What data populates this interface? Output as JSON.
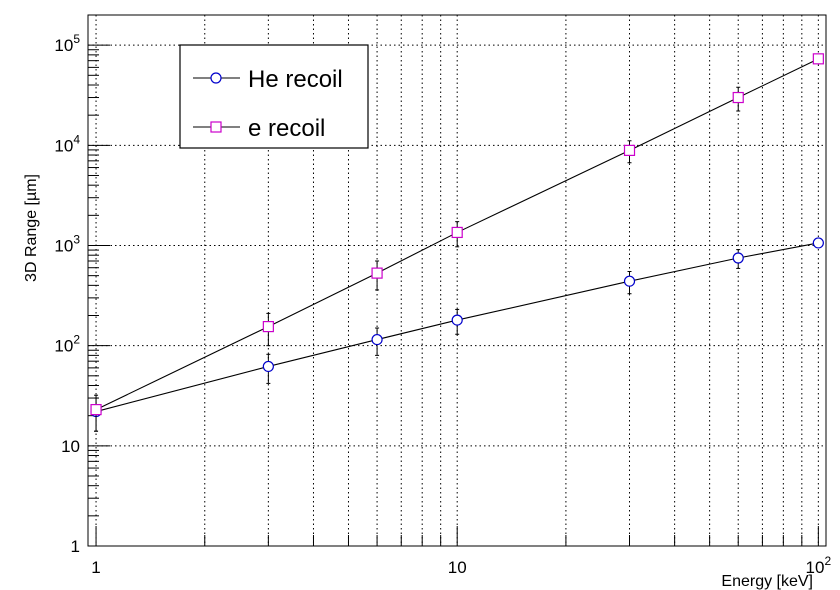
{
  "chart_data": {
    "type": "line",
    "x_scale": "log",
    "y_scale": "log",
    "xlim": [
      0.95,
      105
    ],
    "ylim": [
      1,
      200000
    ],
    "grid": true,
    "xlabel": "Energy [keV]",
    "ylabel": "3D Range [µm]",
    "x_ticks": [
      1,
      10,
      100
    ],
    "x_tick_labels": [
      "1",
      "10",
      "10^2"
    ],
    "y_ticks": [
      1,
      10,
      100,
      1000,
      10000,
      100000
    ],
    "y_tick_labels": [
      "1",
      "10",
      "10^2",
      "10^3",
      "10^4",
      "10^5"
    ],
    "legend_position": "top-left",
    "series": [
      {
        "name": "He recoil",
        "color": "#0000cc",
        "marker": "circle",
        "x": [
          1,
          3,
          6,
          10,
          30,
          60,
          100
        ],
        "y": [
          22,
          62,
          115,
          180,
          440,
          750,
          1060
        ],
        "err": [
          8,
          20,
          35,
          50,
          110,
          160,
          0
        ]
      },
      {
        "name": "e recoil",
        "color": "#cc00cc",
        "marker": "square",
        "x": [
          1,
          3,
          6,
          10,
          30,
          60,
          100
        ],
        "y": [
          23,
          155,
          530,
          1350,
          8900,
          30000,
          73000
        ],
        "err": [
          9,
          55,
          170,
          380,
          2200,
          8000,
          0
        ]
      }
    ]
  }
}
